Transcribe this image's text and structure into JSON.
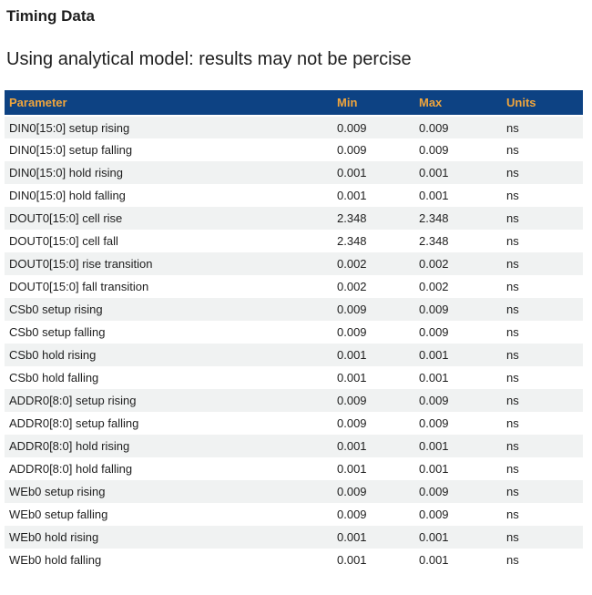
{
  "page": {
    "title": "Timing Data",
    "subtitle": "Using analytical model: results may not be percise"
  },
  "colors": {
    "header_bg": "#0d4283",
    "header_text": "#f0a53c",
    "row_alt_bg": "#f0f2f2",
    "row_bg": "#ffffff",
    "text": "#1e1e1e"
  },
  "table": {
    "columns": [
      {
        "key": "parameter",
        "label": "Parameter"
      },
      {
        "key": "min",
        "label": "Min"
      },
      {
        "key": "max",
        "label": "Max"
      },
      {
        "key": "units",
        "label": "Units"
      }
    ],
    "rows": [
      {
        "parameter": "DIN0[15:0] setup rising",
        "min": "0.009",
        "max": "0.009",
        "units": "ns"
      },
      {
        "parameter": "DIN0[15:0] setup falling",
        "min": "0.009",
        "max": "0.009",
        "units": "ns"
      },
      {
        "parameter": "DIN0[15:0] hold rising",
        "min": "0.001",
        "max": "0.001",
        "units": "ns"
      },
      {
        "parameter": "DIN0[15:0] hold falling",
        "min": "0.001",
        "max": "0.001",
        "units": "ns"
      },
      {
        "parameter": "DOUT0[15:0] cell rise",
        "min": "2.348",
        "max": "2.348",
        "units": "ns"
      },
      {
        "parameter": "DOUT0[15:0] cell fall",
        "min": "2.348",
        "max": "2.348",
        "units": "ns"
      },
      {
        "parameter": "DOUT0[15:0] rise transition",
        "min": "0.002",
        "max": "0.002",
        "units": "ns"
      },
      {
        "parameter": "DOUT0[15:0] fall transition",
        "min": "0.002",
        "max": "0.002",
        "units": "ns"
      },
      {
        "parameter": "CSb0 setup rising",
        "min": "0.009",
        "max": "0.009",
        "units": "ns"
      },
      {
        "parameter": "CSb0 setup falling",
        "min": "0.009",
        "max": "0.009",
        "units": "ns"
      },
      {
        "parameter": "CSb0 hold rising",
        "min": "0.001",
        "max": "0.001",
        "units": "ns"
      },
      {
        "parameter": "CSb0 hold falling",
        "min": "0.001",
        "max": "0.001",
        "units": "ns"
      },
      {
        "parameter": "ADDR0[8:0] setup rising",
        "min": "0.009",
        "max": "0.009",
        "units": "ns"
      },
      {
        "parameter": "ADDR0[8:0] setup falling",
        "min": "0.009",
        "max": "0.009",
        "units": "ns"
      },
      {
        "parameter": "ADDR0[8:0] hold rising",
        "min": "0.001",
        "max": "0.001",
        "units": "ns"
      },
      {
        "parameter": "ADDR0[8:0] hold falling",
        "min": "0.001",
        "max": "0.001",
        "units": "ns"
      },
      {
        "parameter": "WEb0 setup rising",
        "min": "0.009",
        "max": "0.009",
        "units": "ns"
      },
      {
        "parameter": "WEb0 setup falling",
        "min": "0.009",
        "max": "0.009",
        "units": "ns"
      },
      {
        "parameter": "WEb0 hold rising",
        "min": "0.001",
        "max": "0.001",
        "units": "ns"
      },
      {
        "parameter": "WEb0 hold falling",
        "min": "0.001",
        "max": "0.001",
        "units": "ns"
      }
    ]
  }
}
